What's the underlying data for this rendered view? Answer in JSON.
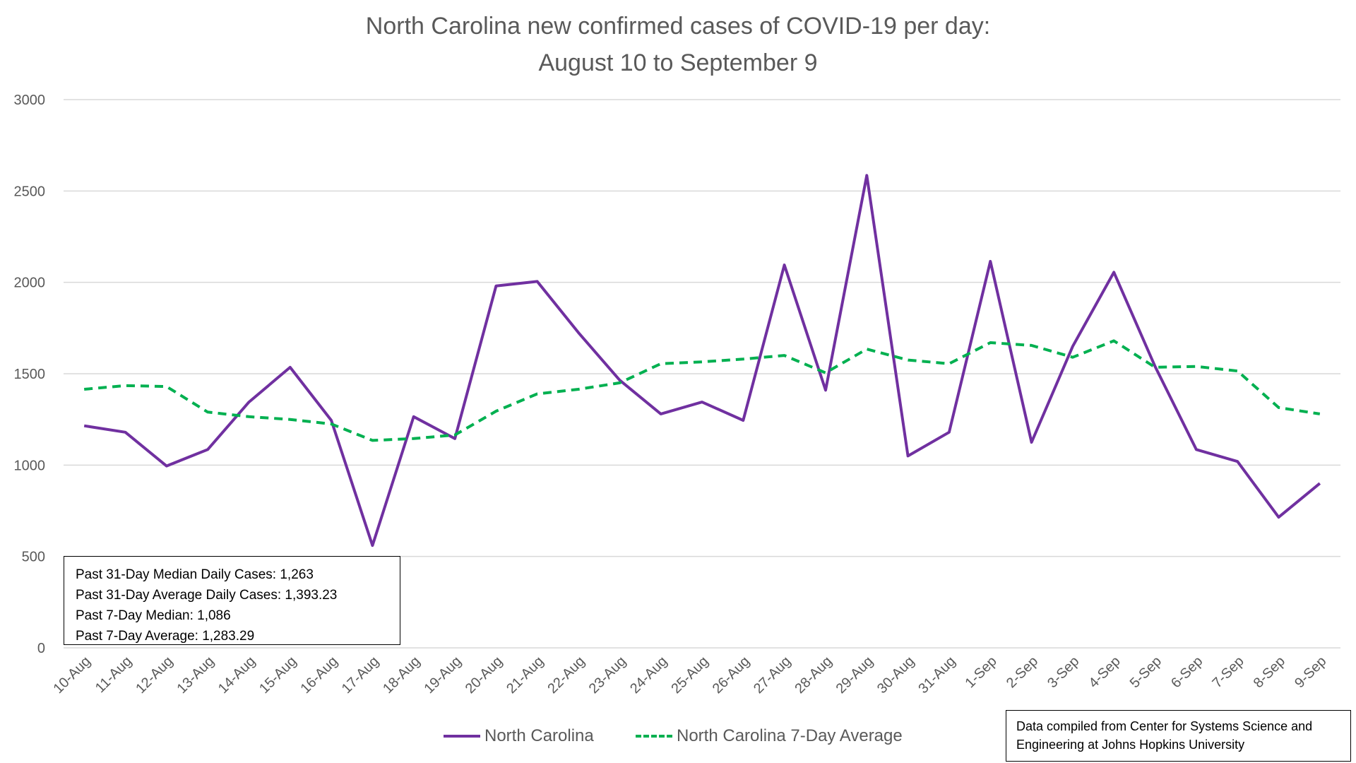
{
  "title_line1": "North Carolina new confirmed cases of COVID-19 per day:",
  "title_line2": "August 10 to September 9",
  "stats": [
    "Past 31-Day Median Daily Cases: 1,263",
    "Past 31-Day Average Daily Cases: 1,393.23",
    "Past 7-Day Median: 1,086",
    "Past 7-Day Average: 1,283.29"
  ],
  "source": [
    "Data compiled from Center for Systems Science and",
    "Engineering at Johns Hopkins University"
  ],
  "legend": [
    "North Carolina",
    "North Carolina 7-Day Average"
  ],
  "colors": {
    "series1": "#7030a0",
    "series2": "#00b050",
    "grid": "#d9d9d9",
    "text": "#595959"
  },
  "chart_data": {
    "type": "line",
    "title": "North Carolina new confirmed cases of COVID-19 per day: August 10 to September 9",
    "ylim": [
      0,
      3000
    ],
    "yticks": [
      0,
      500,
      1000,
      1500,
      2000,
      2500,
      3000
    ],
    "grid": true,
    "legend_position": "bottom",
    "categories": [
      "10-Aug",
      "11-Aug",
      "12-Aug",
      "13-Aug",
      "14-Aug",
      "15-Aug",
      "16-Aug",
      "17-Aug",
      "18-Aug",
      "19-Aug",
      "20-Aug",
      "21-Aug",
      "22-Aug",
      "23-Aug",
      "24-Aug",
      "25-Aug",
      "26-Aug",
      "27-Aug",
      "28-Aug",
      "29-Aug",
      "30-Aug",
      "31-Aug",
      "1-Sep",
      "2-Sep",
      "3-Sep",
      "4-Sep",
      "5-Sep",
      "6-Sep",
      "7-Sep",
      "8-Sep",
      "9-Sep"
    ],
    "series": [
      {
        "name": "North Carolina",
        "values": [
          1215,
          1180,
          995,
          1085,
          1345,
          1535,
          1245,
          560,
          1265,
          1145,
          1980,
          2005,
          1725,
          1465,
          1280,
          1345,
          1245,
          2095,
          1410,
          2585,
          1050,
          1180,
          2115,
          1125,
          1650,
          2055,
          1540,
          1085,
          1020,
          715,
          900
        ]
      },
      {
        "name": "North Carolina 7-Day Average",
        "values": [
          1415,
          1435,
          1430,
          1290,
          1265,
          1250,
          1225,
          1135,
          1145,
          1165,
          1295,
          1390,
          1415,
          1450,
          1555,
          1565,
          1580,
          1600,
          1505,
          1635,
          1575,
          1555,
          1670,
          1655,
          1590,
          1680,
          1535,
          1540,
          1515,
          1315,
          1280
        ]
      }
    ]
  }
}
